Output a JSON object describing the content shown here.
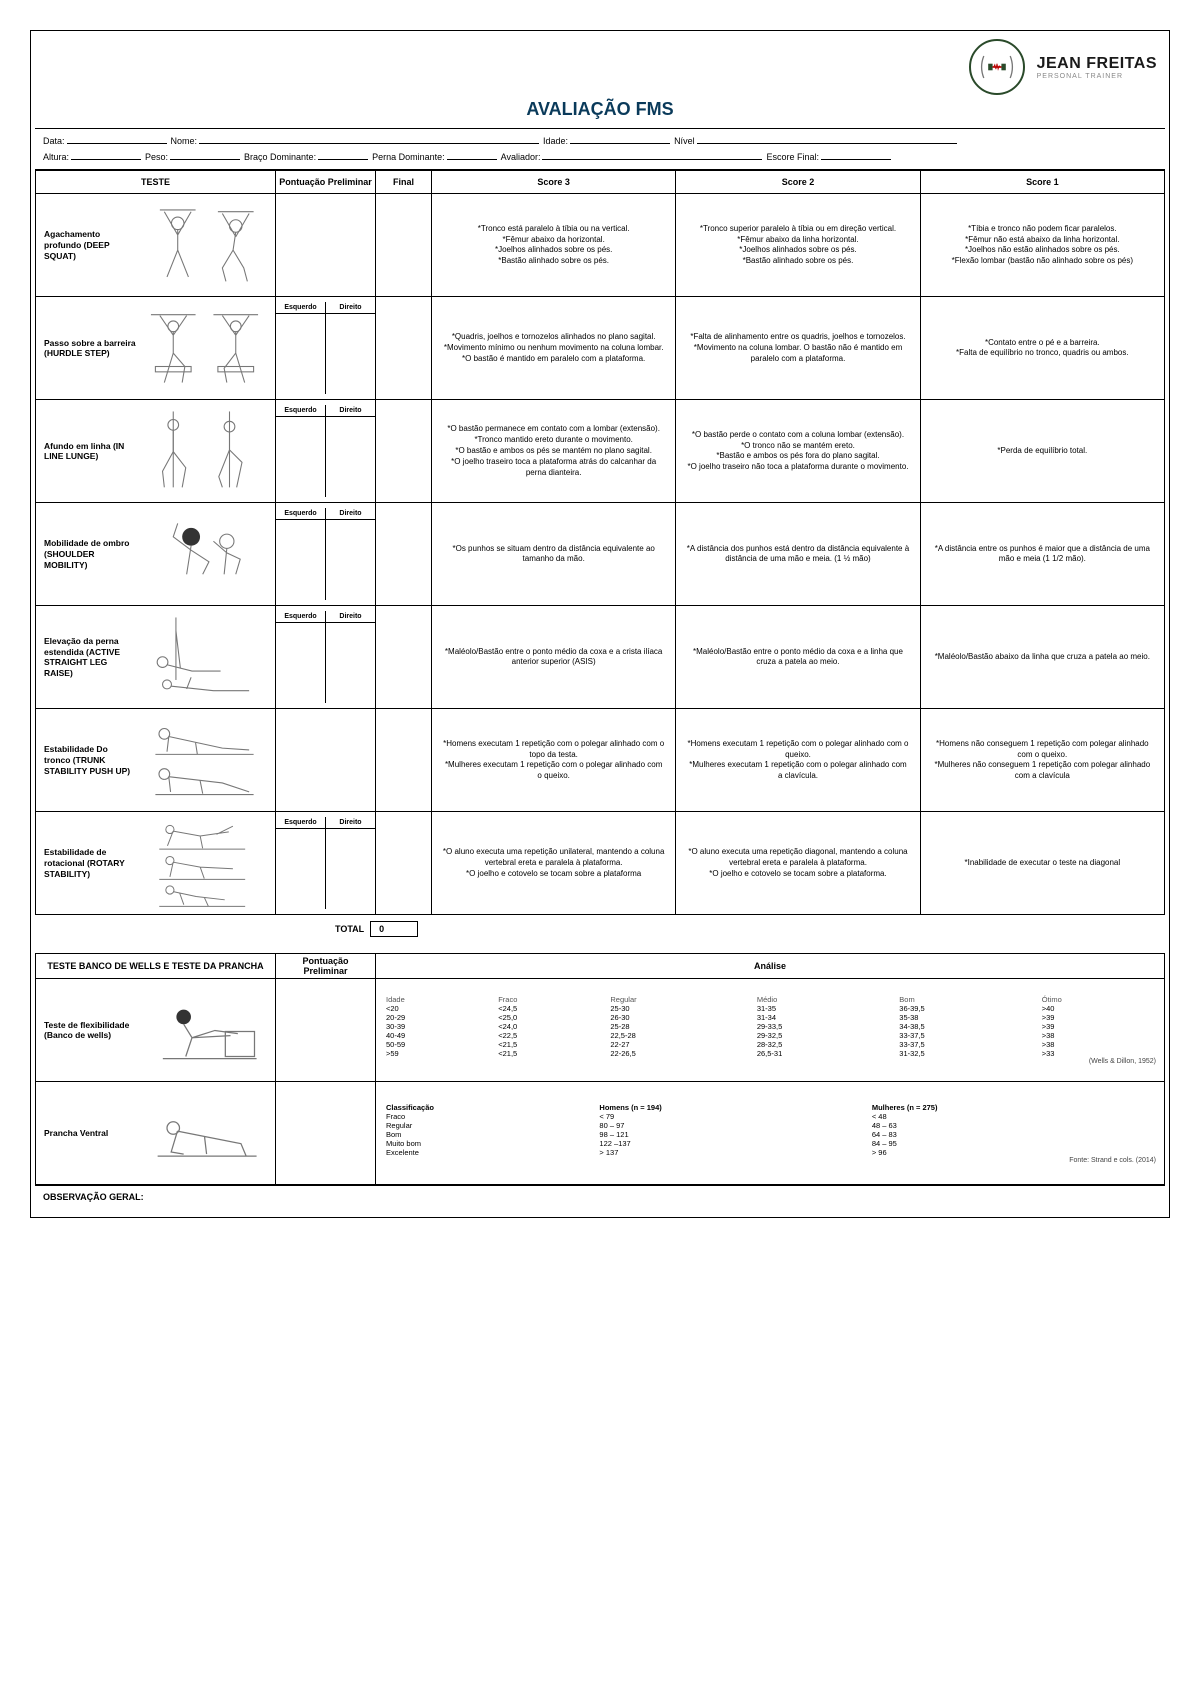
{
  "brand": {
    "name": "JEAN FREITAS",
    "sub": "PERSONAL TRAINER"
  },
  "title": "AVALIAÇÃO FMS",
  "info": {
    "line1": {
      "data": "Data:",
      "nome": "Nome:",
      "idade": "Idade:",
      "nivel": "Nível"
    },
    "line2": {
      "altura": "Altura:",
      "peso": "Peso:",
      "braco": "Braço Dominante:",
      "perna": "Perna Dominante:",
      "avaliador": "Avaliador:",
      "escore": "Escore Final:"
    }
  },
  "headers": {
    "teste": "TESTE",
    "pp": "Pontuação Preliminar",
    "final": "Final",
    "s3": "Score 3",
    "s2": "Score 2",
    "s1": "Score 1",
    "esq": "Esquerdo",
    "dir": "Direito"
  },
  "tests": [
    {
      "name": "Agachamento profundo (DEEP SQUAT)",
      "split": false,
      "s3": "*Tronco está paralelo à tíbia ou na vertical.\n*Fêmur abaixo da horizontal.\n*Joelhos alinhados sobre os pés.\n*Bastão alinhado sobre os pés.",
      "s2": "*Tronco superior paralelo à tíbia ou em direção vertical.\n*Fêmur abaixo da linha horizontal.\n*Joelhos alinhados sobre os pés.\n*Bastão alinhado sobre os pés.",
      "s1": "*Tíbia e tronco não podem ficar paralelos.\n*Fêmur não está abaixo da linha horizontal.\n*Joelhos não estão alinhados sobre os pés.\n*Flexão lombar (bastão não alinhado sobre os pés)"
    },
    {
      "name": "Passo sobre a barreira (HURDLE STEP)",
      "split": true,
      "s3": "*Quadris, joelhos e tornozelos alinhados no plano sagital.\n*Movimento mínimo ou nenhum movimento na coluna lombar.\n*O bastão é mantido em paralelo com a plataforma.",
      "s2": "*Falta de alinhamento entre os quadris, joelhos e tornozelos.\n*Movimento na coluna lombar. O bastão não é mantido em paralelo com a plataforma.",
      "s1": "*Contato entre o pé e a barreira.\n*Falta de equilíbrio no tronco, quadris ou ambos."
    },
    {
      "name": "Afundo em linha            (IN LINE LUNGE)",
      "split": true,
      "s3": "*O bastão permanece em contato com a lombar (extensão).\n*Tronco mantido ereto durante o movimento.\n*O bastão e ambos os pés se mantém no plano sagital.\n*O joelho traseiro toca a plataforma atrás do calcanhar da perna dianteira.",
      "s2": "*O bastão perde o contato com a coluna lombar (extensão).\n*O tronco não se mantém ereto.\n*Bastão e ambos os pés fora do plano sagital.\n*O joelho traseiro não toca a plataforma durante o movimento.",
      "s1": "*Perda de equilíbrio total."
    },
    {
      "name": "Mobilidade de ombro (SHOULDER MOBILITY)",
      "split": true,
      "s3": "*Os punhos se situam dentro da distância equivalente ao tamanho da mão.",
      "s2": "*A distância dos punhos está dentro da distância equivalente à distância de uma mão e meia. (1 ½ mão)",
      "s1": "*A distância entre os punhos é maior que a distância de uma mão e meia (1 1/2 mão)."
    },
    {
      "name": "Elevação da perna estendida (ACTIVE STRAIGHT LEG RAISE)",
      "split": true,
      "s3": "*Maléolo/Bastão entre o ponto médio da coxa e a crista ilíaca anterior superior (ASIS)",
      "s2": "*Maléolo/Bastão entre o ponto médio da coxa e a linha que cruza a patela ao meio.",
      "s1": "*Maléolo/Bastão abaixo da linha que cruza a patela ao meio."
    },
    {
      "name": "Estabilidade Do tronco        (TRUNK STABILITY PUSH UP)",
      "split": false,
      "s3": "*Homens executam 1 repetição com o polegar alinhado com o topo da testa.\n*Mulheres executam 1 repetição com o polegar alinhado com o queixo.",
      "s2": "*Homens executam 1 repetição com o polegar alinhado com o queixo.\n*Mulheres executam 1 repetição com o polegar alinhado com a clavícula.",
      "s1": "*Homens não conseguem 1 repetição com polegar alinhado com o queixo.\n*Mulheres não conseguem 1 repetição com polegar alinhado com a clavícula"
    },
    {
      "name": "Estabilidade de rotacional (ROTARY STABILITY)",
      "split": true,
      "s3": "*O aluno executa uma repetição unilateral, mantendo a coluna vertebral ereta e paralela à plataforma.\n*O joelho e cotovelo se tocam sobre a plataforma",
      "s2": "*O aluno executa uma repetição diagonal, mantendo a coluna vertebral ereta e paralela à plataforma.\n*O joelho e cotovelo se tocam sobre a plataforma.",
      "s1": "*Inabilidade de executar o teste na diagonal"
    }
  ],
  "total": {
    "label": "TOTAL",
    "value": "0"
  },
  "sec": {
    "title": "TESTE BANCO DE WELLS E TESTE DA PRANCHA",
    "pp": "Pontuação Preliminar",
    "analise": "Análise",
    "flex_name": "Teste de flexibilidade (Banco de wells)",
    "flex_table": {
      "head": [
        "Idade",
        "Fraco",
        "Regular",
        "Médio",
        "Bom",
        "Ótimo"
      ],
      "rows": [
        [
          "<20",
          "<24,5",
          "25-30",
          "31-35",
          "36-39,5",
          ">40"
        ],
        [
          "20-29",
          "<25,0",
          "26-30",
          "31-34",
          "35-38",
          ">39"
        ],
        [
          "30-39",
          "<24,0",
          "25-28",
          "29-33,5",
          "34-38,5",
          ">39"
        ],
        [
          "40-49",
          "<22,5",
          "22,5-28",
          "29-32,5",
          "33-37,5",
          ">38"
        ],
        [
          "50-59",
          "<21,5",
          "22-27",
          "28-32,5",
          "33-37,5",
          ">38"
        ],
        [
          ">59",
          "<21,5",
          "22-26,5",
          "26,5-31",
          "31-32,5",
          ">33"
        ]
      ],
      "src": "(Wells & Dillon, 1952)"
    },
    "plank_name": "Prancha Ventral",
    "plank_table": {
      "head": [
        "Classificação",
        "Homens (n = 194)",
        "Mulheres (n = 275)"
      ],
      "rows": [
        [
          "Fraco",
          "< 79",
          "< 48"
        ],
        [
          "Regular",
          "80 – 97",
          "48 – 63"
        ],
        [
          "Bom",
          "98 – 121",
          "64 – 83"
        ],
        [
          "Muito bom",
          "122 –137",
          "84 – 95"
        ],
        [
          "Excelente",
          "> 137",
          "> 96"
        ]
      ],
      "src": "Fonte: Strand e cols. (2014)"
    }
  },
  "obs": "OBSERVAÇÃO GERAL:"
}
